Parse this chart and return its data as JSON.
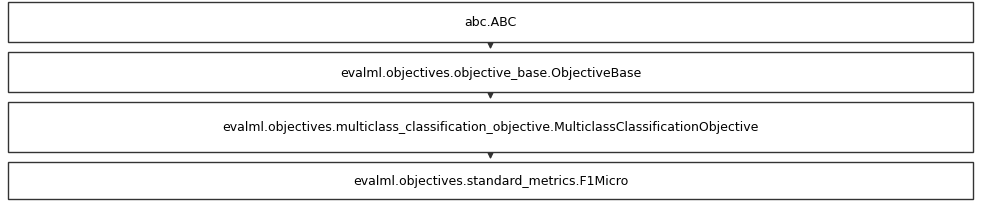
{
  "nodes": [
    "abc.ABC",
    "evalml.objectives.objective_base.ObjectiveBase",
    "evalml.objectives.multiclass_classification_objective.MulticlassClassificationObjective",
    "evalml.objectives.standard_metrics.F1Micro"
  ],
  "background_color": "#ffffff",
  "box_edge_color": "#333333",
  "box_fill_color": "#ffffff",
  "text_color": "#000000",
  "arrow_color": "#333333",
  "font_size": 9,
  "fig_width": 9.81,
  "fig_height": 2.03
}
